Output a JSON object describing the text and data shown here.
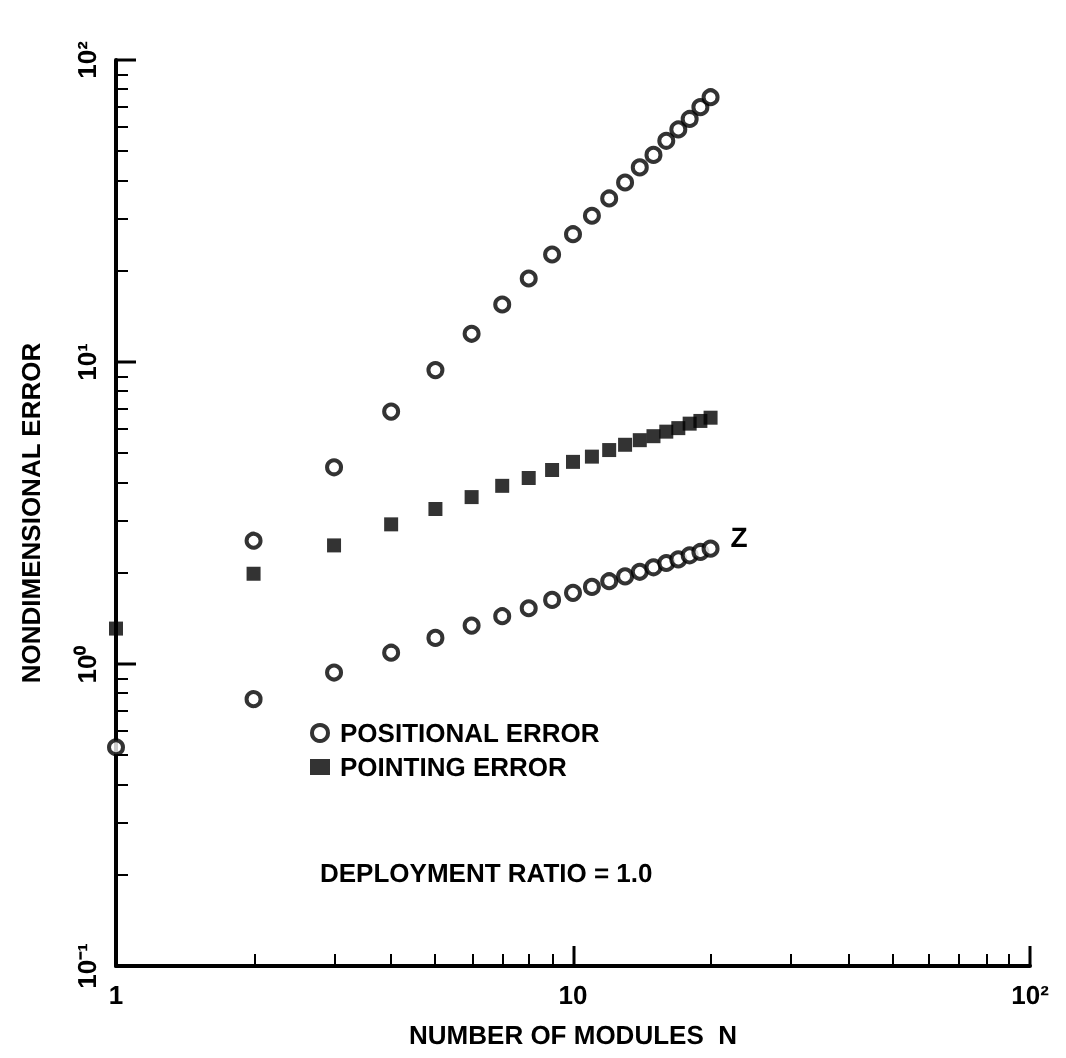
{
  "chart_data": {
    "type": "scatter",
    "xlabel": "NUMBER OF MODULES  N",
    "ylabel": "NONDIMENSIONAL ERROR",
    "log": "xy",
    "grid": false,
    "legend": "left",
    "xlim": [
      1,
      100
    ],
    "xticks": [
      1,
      10,
      {
        "value": 100,
        "label": "10²"
      }
    ],
    "ylim": [
      0.1,
      100
    ],
    "yticks": [
      {
        "value": 0.1,
        "label": "10⁻¹"
      },
      {
        "value": 1,
        "label": "10⁰"
      },
      {
        "value": 10,
        "label": "10¹"
      },
      {
        "value": 100,
        "label": "10²"
      }
    ],
    "series": [
      {
        "name": "POSITIONAL ERROR",
        "color": "#000000",
        "marker": "circle",
        "x": [
          2,
          3,
          4,
          5,
          6,
          7,
          8,
          9,
          10,
          11,
          12,
          13,
          14,
          15,
          16,
          17,
          18,
          19,
          20
        ],
        "values": [
          2.56,
          4.48,
          6.85,
          9.4,
          12.4,
          15.5,
          18.9,
          22.7,
          26.5,
          30.5,
          34.8,
          39.3,
          44.1,
          48.5,
          54,
          58.9,
          63.8,
          69.8,
          75.3
        ]
      },
      {
        "name": "POINTING ERROR",
        "color": "#000000",
        "marker": "square",
        "x": [
          1,
          2,
          3,
          4,
          5,
          6,
          7,
          8,
          9,
          10,
          11,
          12,
          13,
          14,
          15,
          16,
          17,
          18,
          19,
          20
        ],
        "values": [
          1.31,
          1.99,
          2.47,
          2.9,
          3.26,
          3.57,
          3.89,
          4.13,
          4.39,
          4.67,
          4.86,
          5.11,
          5.32,
          5.51,
          5.68,
          5.88,
          6.04,
          6.25,
          6.38,
          6.54
        ]
      },
      {
        "color": "#000000",
        "marker": "circle",
        "x": [
          1,
          2,
          3,
          4,
          5,
          6,
          7,
          8,
          9,
          10,
          11,
          12,
          13,
          14,
          15,
          16,
          17,
          18,
          19,
          20
        ],
        "values": [
          0.53,
          0.765,
          0.937,
          1.09,
          1.22,
          1.34,
          1.44,
          1.53,
          1.63,
          1.72,
          1.8,
          1.88,
          1.95,
          2.02,
          2.09,
          2.16,
          2.22,
          2.29,
          2.35,
          2.41
        ]
      }
    ],
    "annotations": [
      {
        "text": "Z",
        "x": 20,
        "y": 2.41
      },
      "DEPLOYMENT RATIO = 1.0"
    ]
  }
}
